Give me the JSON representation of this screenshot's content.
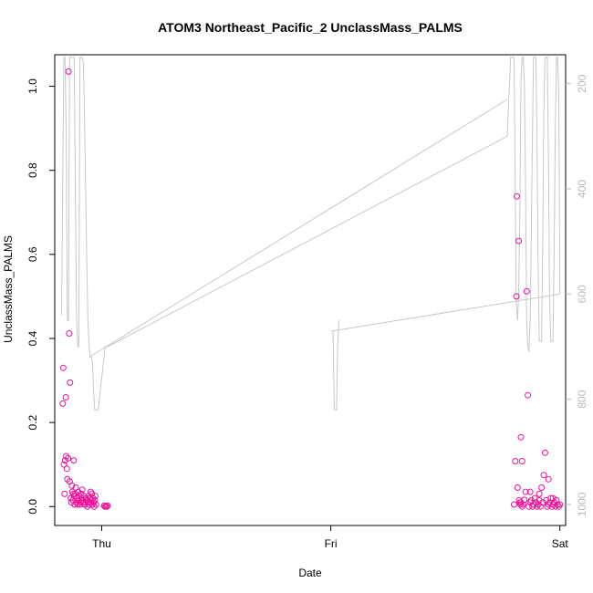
{
  "chart_data": {
    "type": "scatter",
    "title": "ATOM3 Northeast_Pacific_2 UnclassMass_PALMS",
    "xlabel": "Date",
    "ylabel": "UnclassMass_PALMS",
    "x_ticks": [
      "Thu",
      "Fri",
      "Sat"
    ],
    "xlim_days": [
      -0.205,
      2.025
    ],
    "ylim": [
      -0.045,
      1.075
    ],
    "y_ticks": [
      0.0,
      0.2,
      0.4,
      0.6,
      0.8,
      1.0
    ],
    "y2lim": [
      1040,
      145
    ],
    "y2_ticks": [
      200,
      400,
      600,
      800,
      1000
    ],
    "grid": false,
    "colors": {
      "points": "#ee1199",
      "line": "#c8c8c8",
      "right_axis": "#bbbbbb",
      "frame": "#000000"
    },
    "series": [
      {
        "kind": "points",
        "x_days": [
          -0.17,
          -0.168,
          -0.165,
          -0.162,
          -0.16,
          -0.157,
          -0.155,
          -0.152,
          -0.15,
          -0.147,
          -0.145,
          -0.142,
          -0.14,
          -0.138,
          -0.135,
          -0.133,
          -0.13,
          -0.128,
          -0.126,
          -0.124,
          -0.122,
          -0.12,
          -0.118,
          -0.116,
          -0.113,
          -0.11,
          -0.108,
          -0.105,
          -0.103,
          -0.1,
          -0.098,
          -0.095,
          -0.093,
          -0.09,
          -0.088,
          -0.085,
          -0.083,
          -0.08,
          -0.078,
          -0.075,
          -0.073,
          -0.07,
          -0.068,
          -0.065,
          -0.063,
          -0.06,
          -0.058,
          -0.055,
          -0.053,
          -0.05,
          -0.048,
          -0.045,
          -0.043,
          -0.04,
          -0.038,
          -0.035,
          -0.033,
          -0.03,
          -0.028,
          -0.025,
          0.01,
          0.014,
          0.018,
          0.022,
          0.026,
          1.8,
          1.805,
          1.81,
          1.812,
          1.815,
          1.82,
          1.822,
          1.825,
          1.828,
          1.83,
          1.835,
          1.84,
          1.845,
          1.85,
          1.855,
          1.86,
          1.865,
          1.87,
          1.875,
          1.88,
          1.885,
          1.89,
          1.895,
          1.9,
          1.905,
          1.91,
          1.915,
          1.92,
          1.925,
          1.93,
          1.935,
          1.94,
          1.945,
          1.95,
          1.955,
          1.96,
          1.965,
          1.97,
          1.975,
          1.98,
          1.985,
          1.99,
          1.995,
          2.0,
          1.83,
          1.835,
          1.87,
          1.91,
          1.95,
          1.97
        ],
        "y": [
          0.245,
          0.33,
          0.1,
          0.03,
          0.11,
          0.26,
          0.12,
          0.09,
          0.065,
          0.115,
          1.035,
          0.412,
          0.06,
          0.295,
          0.02,
          0.01,
          0.05,
          0.035,
          0.015,
          0.03,
          0.11,
          0.025,
          0.005,
          0.03,
          0.045,
          0.01,
          0.02,
          0.005,
          0.035,
          0.015,
          0.025,
          0.005,
          0.01,
          0.03,
          0.02,
          0.04,
          0.015,
          0.01,
          0.025,
          0.005,
          0.005,
          0.01,
          0.02,
          0.015,
          0.0,
          0.01,
          0.025,
          0.005,
          0.02,
          0.01,
          0.035,
          0.015,
          0.03,
          0.005,
          0.02,
          0.01,
          0.0,
          0.015,
          0.025,
          0.005,
          0.002,
          0.0,
          0.001,
          0.0,
          0.002,
          0.005,
          0.108,
          0.5,
          0.738,
          0.045,
          0.632,
          0.015,
          0.01,
          0.005,
          0.01,
          0.0,
          0.005,
          0.016,
          0.035,
          0.512,
          0.265,
          0.0,
          0.01,
          0.015,
          0.0,
          0.005,
          0.02,
          0.01,
          0.0,
          0.005,
          0.015,
          0.0,
          0.045,
          0.01,
          0.075,
          0.128,
          0.015,
          0.0,
          0.005,
          0.01,
          0.02,
          0.0,
          0.005,
          0.01,
          0.0,
          0.015,
          0.005,
          0.0,
          0.005,
          0.165,
          0.108,
          0.035,
          0.03,
          0.065,
          0.02
        ]
      },
      {
        "kind": "line",
        "axis": "right",
        "x_days": [
          -0.175,
          -0.17,
          -0.165,
          -0.16,
          -0.155,
          -0.15,
          -0.145,
          -0.14,
          -0.135,
          -0.13,
          -0.125,
          -0.12,
          -0.115,
          -0.11,
          -0.105,
          -0.1,
          -0.095,
          -0.09,
          -0.085,
          -0.08,
          -0.075,
          -0.07,
          -0.065,
          -0.06,
          -0.055,
          -0.05,
          -0.045,
          -0.04,
          -0.035,
          -0.03,
          -0.025,
          -0.02,
          -0.015,
          -0.01,
          -0.005,
          0.0,
          0.005,
          0.01,
          0.015,
          0.02,
          0.025,
          1.77,
          1.775,
          1.78,
          1.785,
          1.79,
          1.795,
          1.8,
          1.805,
          1.81,
          1.815,
          1.82,
          1.825,
          1.83,
          1.835,
          1.84,
          1.845,
          1.85,
          1.855,
          1.86,
          1.865,
          1.87,
          1.875,
          1.88,
          1.885,
          1.89,
          1.895,
          1.9,
          1.905,
          1.91,
          1.915,
          1.92,
          1.925,
          1.93,
          1.935,
          1.94,
          1.945,
          1.95,
          1.955,
          1.96,
          1.965,
          1.97,
          1.975,
          1.98,
          1.985,
          1.99,
          1.995,
          2.0
        ],
        "y2": [
          640,
          380,
          150,
          150,
          300,
          650,
          650,
          150,
          150,
          150,
          150,
          150,
          400,
          640,
          700,
          700,
          150,
          150,
          150,
          160,
          260,
          400,
          550,
          650,
          700,
          720,
          720,
          730,
          790,
          820,
          820,
          820,
          820,
          800,
          780,
          760,
          740,
          720,
          700,
          700,
          700,
          300,
          250,
          200,
          150,
          150,
          150,
          150,
          400,
          620,
          650,
          600,
          450,
          200,
          150,
          150,
          200,
          400,
          650,
          700,
          710,
          650,
          500,
          300,
          150,
          150,
          150,
          300,
          550,
          690,
          690,
          690,
          500,
          250,
          150,
          150,
          150,
          350,
          600,
          690,
          690,
          690,
          520,
          280,
          150,
          150,
          220,
          600
        ]
      },
      {
        "kind": "line",
        "axis": "right",
        "x_days": [
          -0.055,
          1.77
        ],
        "y2": [
          720,
          230
        ]
      },
      {
        "kind": "line",
        "axis": "right",
        "x_days": [
          1.0,
          1.01,
          1.015,
          1.02,
          1.025,
          1.03,
          1.035
        ],
        "y2": [
          670,
          670,
          820,
          820,
          820,
          700,
          650
        ]
      },
      {
        "kind": "line",
        "axis": "right",
        "x_days": [
          1.01,
          2.0
        ],
        "y2": [
          670,
          600
        ]
      }
    ]
  }
}
